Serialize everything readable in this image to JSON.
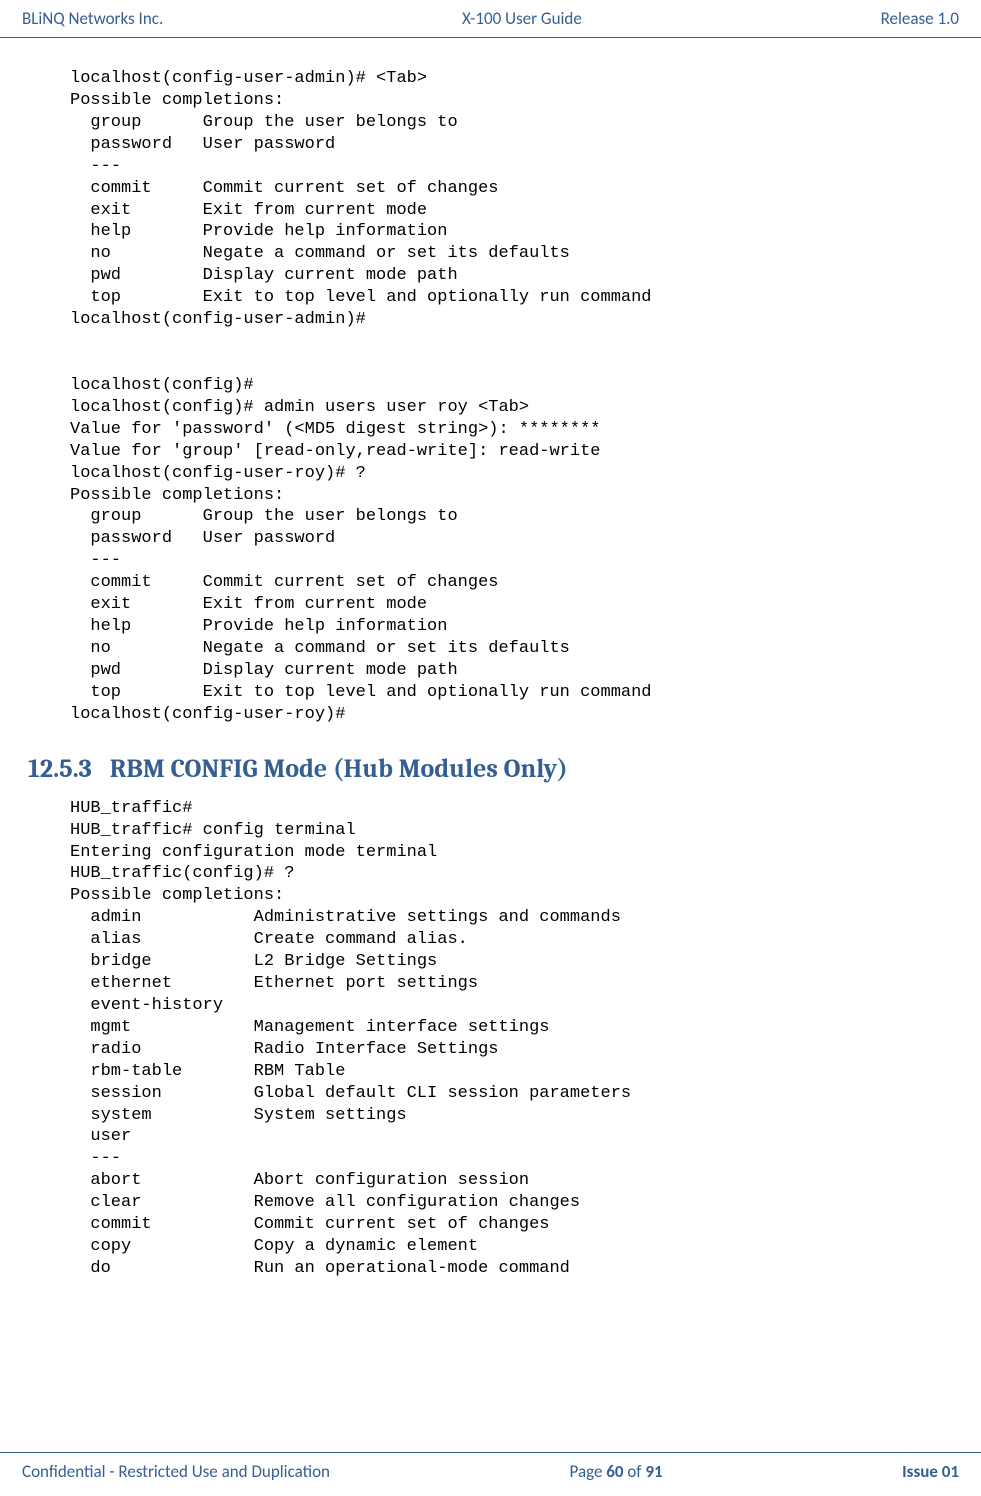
{
  "header": {
    "left": "BLiNQ Networks Inc.",
    "center": "X-100 User Guide",
    "right": "Release 1.0"
  },
  "footer": {
    "left": "Confidential - Restricted Use and Duplication",
    "center_prefix": "Page ",
    "center_current": "60",
    "center_mid": " of ",
    "center_total": "91",
    "right": "Issue 01"
  },
  "cli_block_1": "localhost(config-user-admin)# <Tab>\nPossible completions:\n  group      Group the user belongs to\n  password   User password\n  ---\n  commit     Commit current set of changes\n  exit       Exit from current mode\n  help       Provide help information\n  no         Negate a command or set its defaults\n  pwd        Display current mode path\n  top        Exit to top level and optionally run command\nlocalhost(config-user-admin)#\n\n\nlocalhost(config)#\nlocalhost(config)# admin users user roy <Tab>\nValue for 'password' (<MD5 digest string>): ********\nValue for 'group' [read-only,read-write]: read-write\nlocalhost(config-user-roy)# ?\nPossible completions:\n  group      Group the user belongs to\n  password   User password\n  ---\n  commit     Commit current set of changes\n  exit       Exit from current mode\n  help       Provide help information\n  no         Negate a command or set its defaults\n  pwd        Display current mode path\n  top        Exit to top level and optionally run command\nlocalhost(config-user-roy)#",
  "section": {
    "number": "12.5.3",
    "title": "RBM CONFIG Mode (Hub Modules Only)"
  },
  "cli_block_2": "HUB_traffic#\nHUB_traffic# config terminal\nEntering configuration mode terminal\nHUB_traffic(config)# ?\nPossible completions:\n  admin           Administrative settings and commands\n  alias           Create command alias.\n  bridge          L2 Bridge Settings\n  ethernet        Ethernet port settings\n  event-history\n  mgmt            Management interface settings\n  radio           Radio Interface Settings\n  rbm-table       RBM Table\n  session         Global default CLI session parameters\n  system          System settings\n  user\n  ---\n  abort           Abort configuration session\n  clear           Remove all configuration changes\n  commit          Commit current set of changes\n  copy            Copy a dynamic element\n  do              Run an operational-mode command"
}
